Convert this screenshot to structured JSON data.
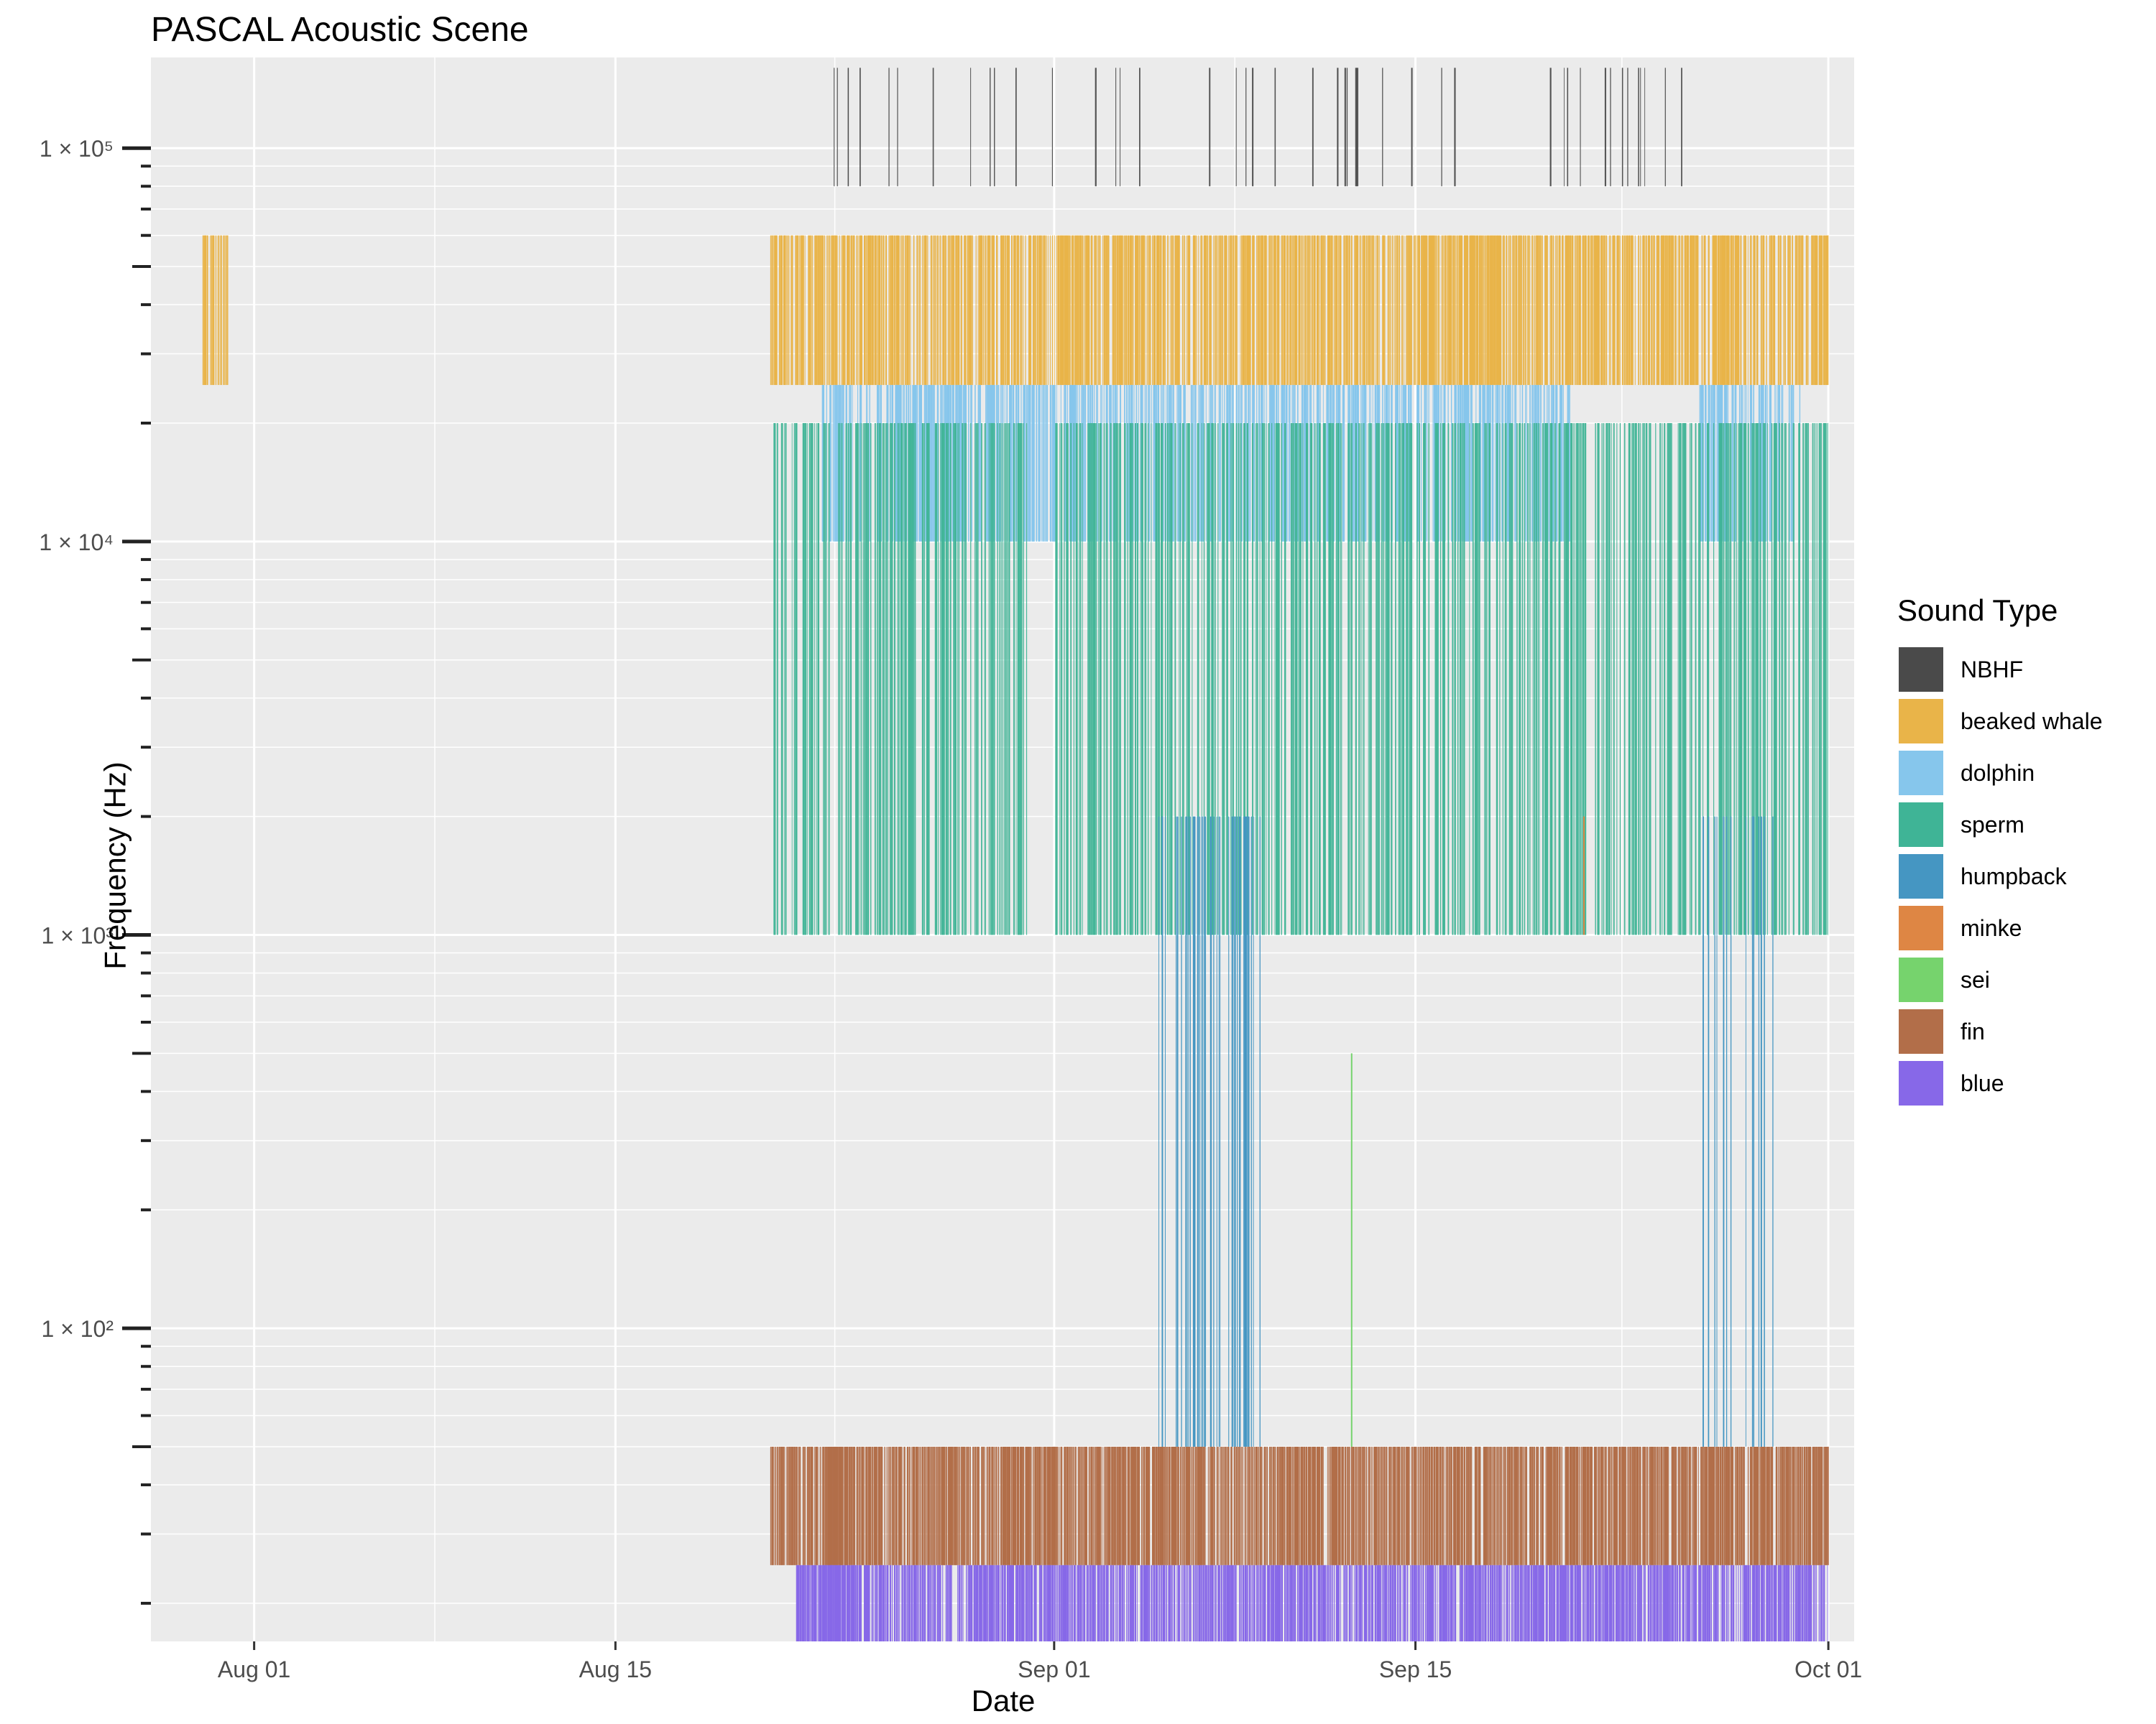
{
  "chart_data": {
    "type": "bar",
    "title": "PASCAL Acoustic Scene",
    "xlabel": "Date",
    "ylabel": "Frequency (Hz)",
    "y_scale": "log10",
    "ylim": [
      16,
      170000
    ],
    "xlim": [
      "2025-07-28",
      "2025-10-02"
    ],
    "x_ticks": [
      {
        "date": "2025-08-01",
        "label": "Aug 01"
      },
      {
        "date": "2025-08-15",
        "label": "Aug 15"
      },
      {
        "date": "2025-09-01",
        "label": "Sep 01"
      },
      {
        "date": "2025-09-15",
        "label": "Sep 15"
      },
      {
        "date": "2025-10-01",
        "label": "Oct 01"
      }
    ],
    "y_ticks": [
      {
        "value": 100,
        "label": "1 × 10²"
      },
      {
        "value": 1000,
        "label": "1 × 10³"
      },
      {
        "value": 10000,
        "label": "1 × 10⁴"
      },
      {
        "value": 100000,
        "label": "1 × 10⁵"
      }
    ],
    "grid": true,
    "legend_title": "Sound Type",
    "legend_position": "right",
    "series": [
      {
        "name": "NBHF",
        "color": "#4a4a4a",
        "freq_range": [
          80000,
          160000
        ],
        "opacity": 0.95,
        "density": 0.05,
        "intervals": [
          [
            "2025-08-21",
            "2025-08-26"
          ],
          [
            "2025-08-27",
            "2025-08-31"
          ],
          [
            "2025-09-02",
            "2025-09-04"
          ],
          [
            "2025-09-07",
            "2025-09-17"
          ],
          [
            "2025-09-18",
            "2025-09-25"
          ]
        ]
      },
      {
        "name": "beaked whale",
        "color": "#e9b449",
        "freq_range": [
          25000,
          60000
        ],
        "opacity": 1,
        "density": 0.8,
        "intervals": [
          [
            "2025-07-30",
            "2025-07-30"
          ],
          [
            "2025-08-21",
            "2025-08-21"
          ],
          [
            "2025-08-22",
            "2025-09-30"
          ]
        ]
      },
      {
        "name": "dolphin",
        "color": "#86c6ec",
        "freq_range": [
          10000,
          25000
        ],
        "opacity": 1,
        "density": 0.65,
        "intervals": [
          [
            "2025-08-23",
            "2025-08-30"
          ],
          [
            "2025-08-31",
            "2025-09-05"
          ],
          [
            "2025-09-06",
            "2025-09-20"
          ],
          [
            "2025-09-26",
            "2025-09-29"
          ]
        ]
      },
      {
        "name": "sperm",
        "color": "#3fb496",
        "freq_range": [
          1000,
          20000
        ],
        "opacity": 0.95,
        "density": 0.55,
        "intervals": [
          [
            "2025-08-21",
            "2025-08-24"
          ],
          [
            "2025-08-25",
            "2025-08-30"
          ],
          [
            "2025-09-01",
            "2025-09-05"
          ],
          [
            "2025-09-06",
            "2025-09-20"
          ],
          [
            "2025-09-21",
            "2025-09-24"
          ],
          [
            "2025-09-25",
            "2025-09-30"
          ]
        ]
      },
      {
        "name": "humpback",
        "color": "#4596c2",
        "freq_range": [
          50,
          2000
        ],
        "opacity": 1,
        "density": 0.3,
        "intervals": [
          [
            "2025-09-05",
            "2025-09-08"
          ],
          [
            "2025-09-26",
            "2025-09-28"
          ]
        ]
      },
      {
        "name": "minke",
        "color": "#de8644",
        "freq_range": [
          1000,
          2000
        ],
        "opacity": 1,
        "density": 0.1,
        "intervals": [
          [
            "2025-09-21",
            "2025-09-21"
          ]
        ]
      },
      {
        "name": "sei",
        "color": "#76d36d",
        "freq_range": [
          50,
          500
        ],
        "opacity": 1,
        "density": 0.1,
        "intervals": [
          [
            "2025-09-12",
            "2025-09-12"
          ]
        ]
      },
      {
        "name": "fin",
        "color": "#b26e49",
        "freq_range": [
          25,
          50
        ],
        "opacity": 1,
        "density": 0.9,
        "intervals": [
          [
            "2025-08-21",
            "2025-08-23"
          ],
          [
            "2025-08-23",
            "2025-09-30"
          ]
        ]
      },
      {
        "name": "blue",
        "color": "#8768e8",
        "freq_range": [
          16,
          25
        ],
        "opacity": 1,
        "density": 0.85,
        "intervals": [
          [
            "2025-08-22",
            "2025-08-23"
          ],
          [
            "2025-08-23",
            "2025-09-30"
          ]
        ]
      }
    ]
  }
}
